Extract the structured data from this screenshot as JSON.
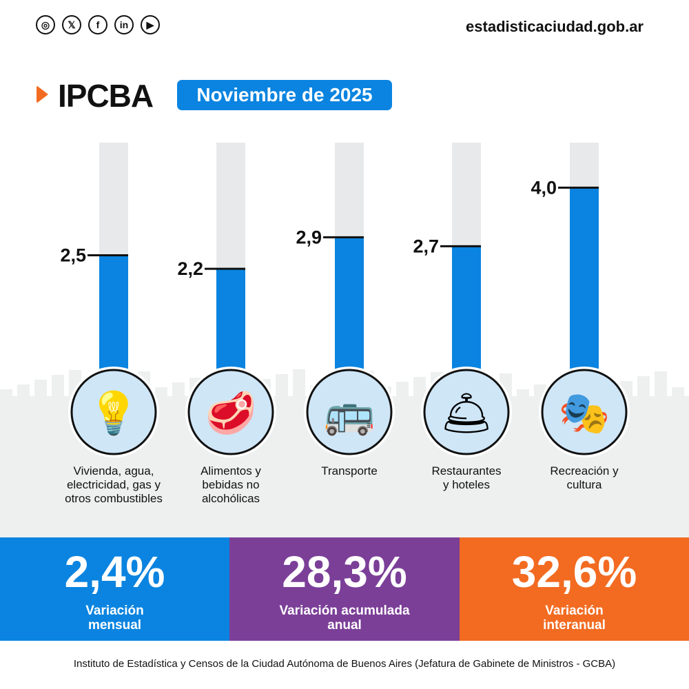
{
  "header": {
    "social_icons": [
      "instagram-icon",
      "x-icon",
      "facebook-icon",
      "linkedin-icon",
      "youtube-icon"
    ],
    "site": "estadisticaciudad.gob.ar",
    "title": "IPCBA",
    "period": "Noviembre de 2025"
  },
  "chart_data": {
    "type": "bar",
    "categories": [
      "Vivienda, agua, electricidad, gas y otros combustibles",
      "Alimentos y bebidas no alcohólicas",
      "Transporte",
      "Restaurantes y hoteles",
      "Recreación y cultura"
    ],
    "values": [
      2.5,
      2.2,
      2.9,
      2.7,
      4.0
    ],
    "value_labels": [
      "2,5",
      "2,2",
      "2,9",
      "2,7",
      "4,0"
    ],
    "icons": [
      "lightbulb-icon",
      "meat-icon",
      "bus-icon",
      "service-bell-icon",
      "theater-masks-icon"
    ],
    "ylim": [
      0,
      5
    ],
    "colors": {
      "bar": "#0a84e0",
      "track": "#e8e9ea"
    }
  },
  "stats": [
    {
      "value": "2,4%",
      "label": "Variación mensual",
      "color": "#0a84e0"
    },
    {
      "value": "28,3%",
      "label": "Variación acumulada anual",
      "color": "#7b3f98"
    },
    {
      "value": "32,6%",
      "label": "Variación interanual",
      "color": "#f26b21"
    }
  ],
  "footer": "Instituto de Estadística y Censos de la Ciudad Autónoma de Buenos Aires (Jefatura de Gabinete de Ministros - GCBA)"
}
